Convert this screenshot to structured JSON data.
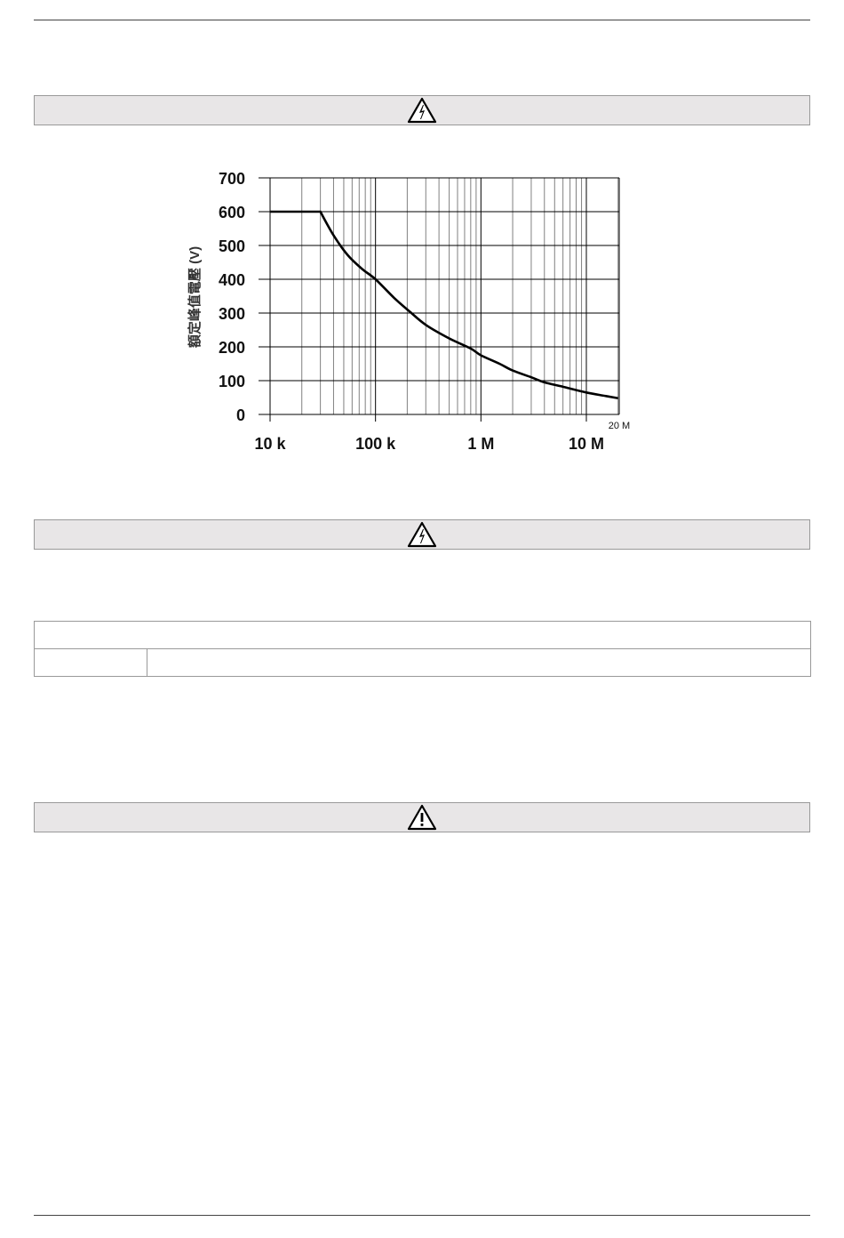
{
  "warning_bars": [
    {
      "icon": "high-voltage-warning-icon"
    },
    {
      "icon": "high-voltage-warning-icon"
    },
    {
      "icon": "general-warning-icon"
    }
  ],
  "colors": {
    "bar_bg": "#e8e6e7",
    "curve": "#000000",
    "grid_major": "#000000",
    "grid_minor": "#808080"
  },
  "chart_data": {
    "type": "line",
    "title": "",
    "xlabel": "",
    "ylabel": "額定峰值電壓 (V)",
    "xscale": "log",
    "xlim": [
      10000,
      20000000
    ],
    "ylim": [
      0,
      700
    ],
    "grid": true,
    "x_tick_labels": [
      {
        "value": 10000,
        "label": "10 k"
      },
      {
        "value": 100000,
        "label": "100 k"
      },
      {
        "value": 1000000,
        "label": "1 M"
      },
      {
        "value": 10000000,
        "label": "10 M"
      }
    ],
    "x_end_label": {
      "value": 20000000,
      "label": "20 M"
    },
    "y_ticks": [
      0,
      100,
      200,
      300,
      400,
      500,
      600,
      700
    ],
    "series": [
      {
        "x": [
          10000,
          30000,
          40000,
          55000,
          75000,
          100000,
          150000,
          210000,
          300000,
          500000,
          800000,
          1000000,
          1500000,
          2000000,
          3000000,
          4000000,
          6000000,
          10000000,
          15000000,
          20000000
        ],
        "y": [
          600,
          600,
          530,
          470,
          430,
          400,
          345,
          305,
          265,
          225,
          195,
          175,
          150,
          130,
          110,
          95,
          82,
          65,
          55,
          48
        ]
      }
    ]
  }
}
